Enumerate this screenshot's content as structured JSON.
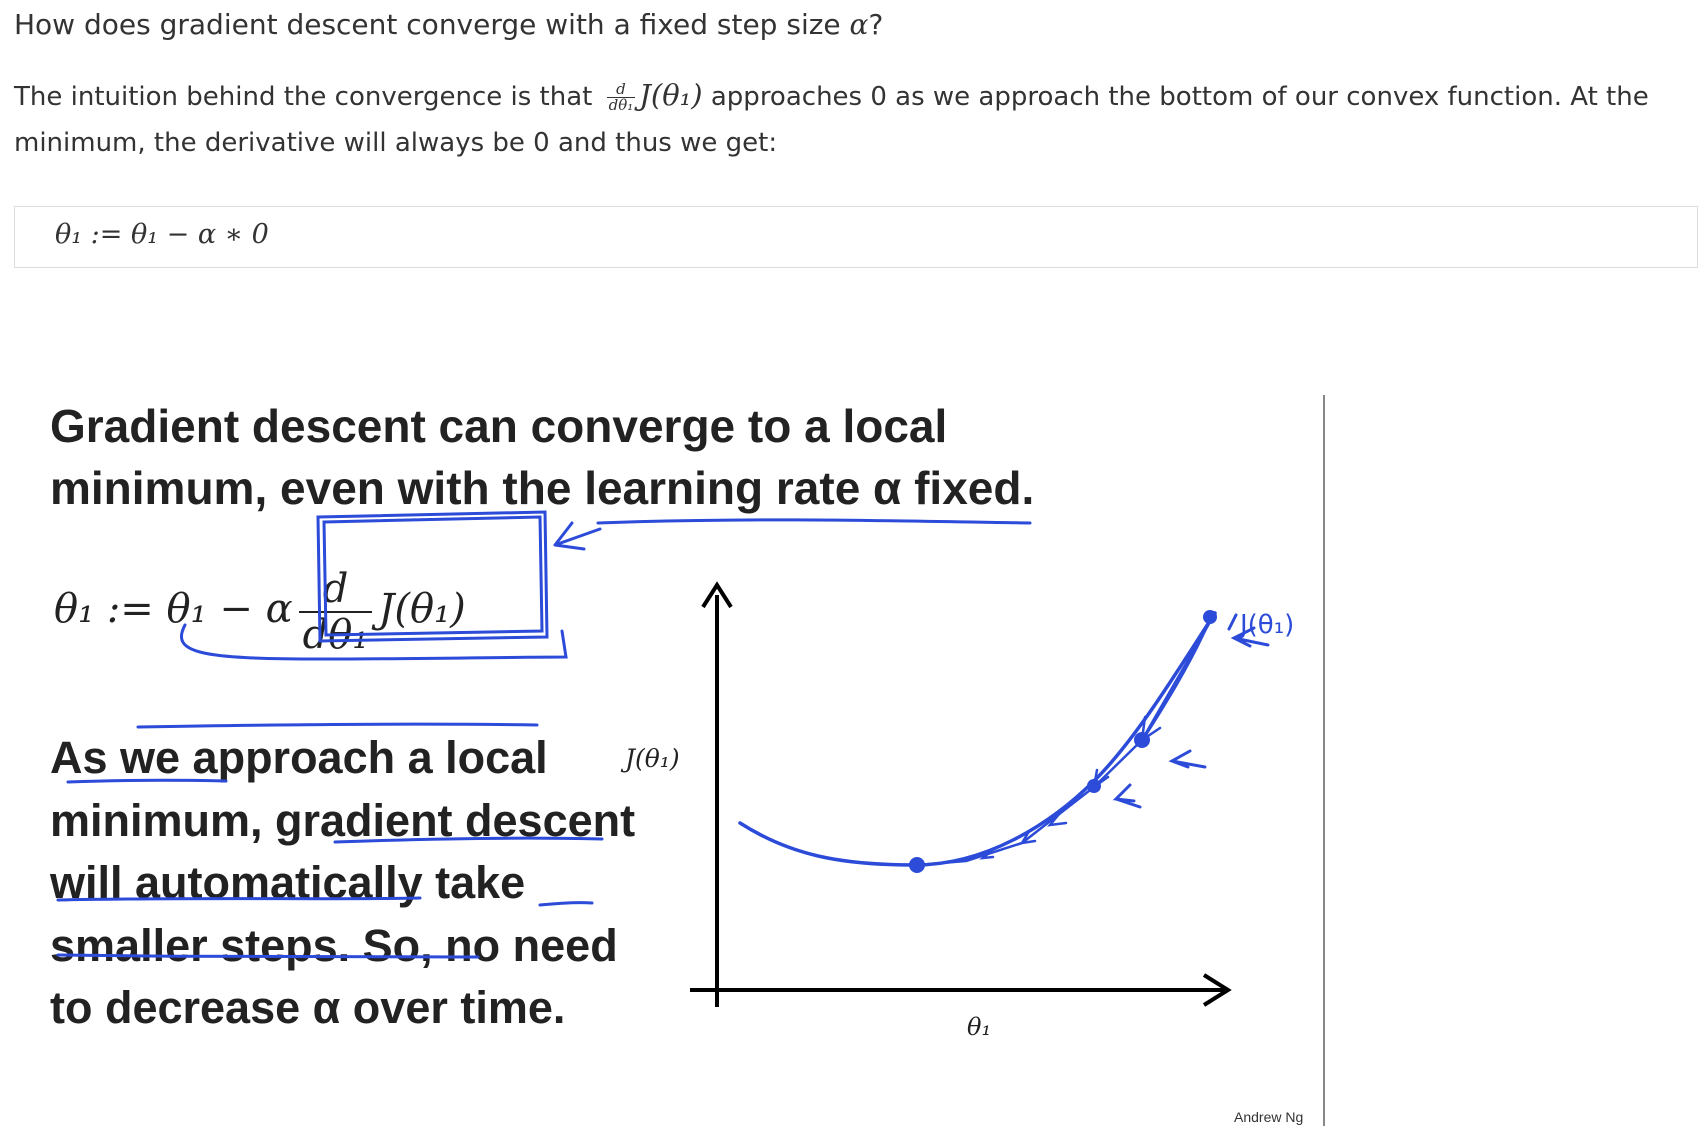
{
  "question": {
    "text_before": "How does gradient descent converge with a fixed step size ",
    "alpha": "α",
    "text_after": "?"
  },
  "intro": {
    "before": "The intuition behind the convergence is that ",
    "frac_num": "d",
    "frac_den": "dθ₁",
    "expr": "J(θ₁)",
    "after": " approaches 0 as we approach the bottom of our convex function. At the minimum, the derivative will always be 0 and thus we get:"
  },
  "equation_box": {
    "text": "θ₁ := θ₁ − α ∗ 0"
  },
  "slide": {
    "title": "Gradient descent can converge to a local minimum, even with the learning rate α fixed.",
    "eq_left": "θ₁ := θ₁ − α",
    "eq_frac_num": "d",
    "eq_frac_den": "dθ₁",
    "eq_right": "J(θ₁)",
    "body": "As we approach a local minimum, gradient descent will automatically take smaller steps. So, no need to decrease α over time.",
    "y_axis_label": "J(θ₁)",
    "x_axis_label": "θ₁",
    "handwritten_label": "J(θ₁)",
    "credit": "Andrew Ng",
    "ink_color": "#2b4bd8"
  }
}
